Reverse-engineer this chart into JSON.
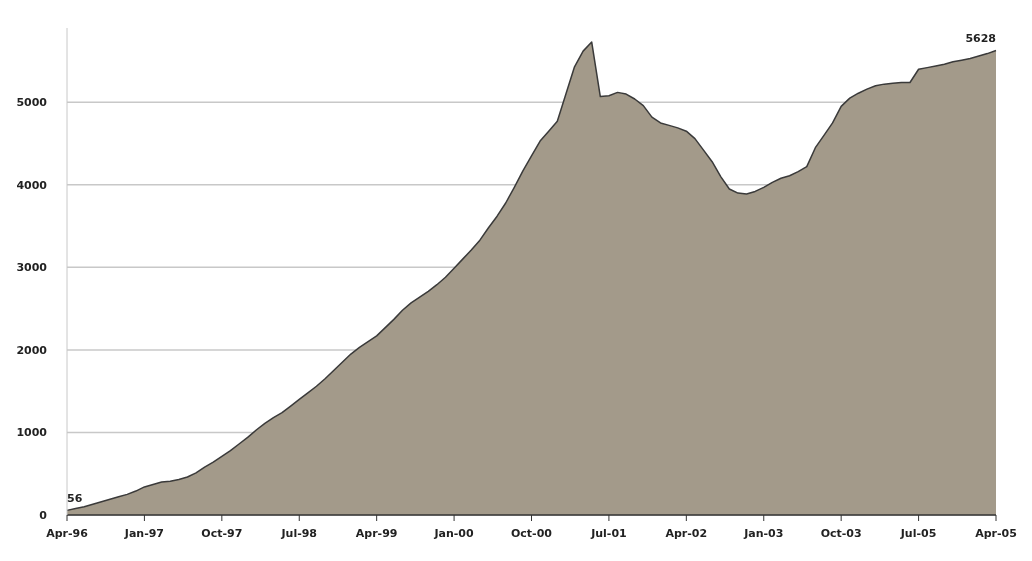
{
  "chart_data": {
    "type": "area",
    "categories": [
      "Apr-96",
      null,
      null,
      null,
      null,
      null,
      null,
      null,
      null,
      "Jan-97",
      null,
      null,
      null,
      null,
      null,
      null,
      null,
      null,
      "Oct-97",
      null,
      null,
      null,
      null,
      null,
      null,
      null,
      null,
      "Jul-98",
      null,
      null,
      null,
      null,
      null,
      null,
      null,
      null,
      "Apr-99",
      null,
      null,
      null,
      null,
      null,
      null,
      null,
      null,
      "Jan-00",
      null,
      null,
      null,
      null,
      null,
      null,
      null,
      null,
      "Oct-00",
      null,
      null,
      null,
      null,
      null,
      null,
      null,
      null,
      "Jul-01",
      null,
      null,
      null,
      null,
      null,
      null,
      null,
      null,
      "Apr-02",
      null,
      null,
      null,
      null,
      null,
      null,
      null,
      null,
      "Jan-03",
      null,
      null,
      null,
      null,
      null,
      null,
      null,
      null,
      "Oct-03",
      null,
      null,
      null,
      null,
      null,
      null,
      null,
      null,
      "Jul-05",
      null,
      null,
      null,
      null,
      null,
      null,
      null,
      null,
      "Apr-05"
    ],
    "values": [
      56,
      80,
      100,
      130,
      160,
      190,
      220,
      250,
      290,
      340,
      370,
      400,
      410,
      430,
      460,
      510,
      580,
      640,
      710,
      780,
      860,
      940,
      1030,
      1110,
      1180,
      1240,
      1320,
      1400,
      1480,
      1560,
      1650,
      1750,
      1850,
      1950,
      2030,
      2100,
      2170,
      2270,
      2370,
      2480,
      2570,
      2640,
      2710,
      2790,
      2880,
      2990,
      3100,
      3210,
      3330,
      3480,
      3620,
      3780,
      3970,
      4170,
      4350,
      4530,
      4650,
      4770,
      5100,
      5430,
      5620,
      5730,
      5070,
      5080,
      5120,
      5100,
      5040,
      4960,
      4820,
      4750,
      4720,
      4690,
      4650,
      4560,
      4420,
      4280,
      4100,
      3950,
      3900,
      3890,
      3920,
      3970,
      4030,
      4080,
      4110,
      4160,
      4220,
      4450,
      4600,
      4750,
      4950,
      5050,
      5110,
      5160,
      5200,
      5220,
      5230,
      5240,
      5240,
      5400,
      5420,
      5440,
      5460,
      5490,
      5510,
      5530,
      5560,
      5590,
      5628
    ],
    "value_labels": [
      "56",
      null,
      null,
      null,
      null,
      null,
      null,
      null,
      null,
      null,
      null,
      null,
      null,
      null,
      null,
      null,
      null,
      null,
      null,
      null,
      null,
      null,
      null,
      null,
      null,
      null,
      null,
      null,
      null,
      null,
      null,
      null,
      null,
      null,
      null,
      null,
      null,
      null,
      null,
      null,
      null,
      null,
      null,
      null,
      null,
      null,
      null,
      null,
      null,
      null,
      null,
      null,
      null,
      null,
      null,
      null,
      null,
      null,
      null,
      null,
      null,
      null,
      null,
      null,
      null,
      null,
      null,
      null,
      null,
      null,
      null,
      null,
      null,
      null,
      null,
      null,
      null,
      null,
      null,
      null,
      null,
      null,
      null,
      null,
      null,
      null,
      null,
      null,
      null,
      null,
      null,
      null,
      null,
      null,
      null,
      null,
      null,
      null,
      null,
      null,
      null,
      null,
      null,
      null,
      null,
      null,
      null,
      null,
      "5628"
    ],
    "color": "#a39a8a",
    "ylim": [
      0,
      5900
    ],
    "yticks": [
      0,
      1000,
      2000,
      3000,
      4000,
      5000
    ],
    "grid": "y"
  }
}
